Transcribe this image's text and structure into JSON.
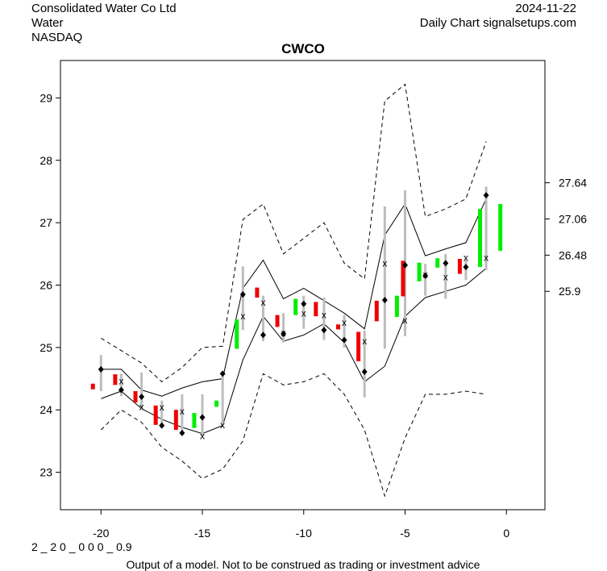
{
  "header": {
    "company": "Consolidated Water Co Ltd",
    "sector": "Water",
    "exchange": "NASDAQ",
    "date": "2024-11-22",
    "chart_kind": "Daily Chart signalsetups.com"
  },
  "footer": {
    "code": "2 _ 2 0 _ 0 0 0 _ 0.9",
    "disclaimer": "Output of a model. Not to be construed as trading or investment advice"
  },
  "colors": {
    "up": "#00ee00",
    "down": "#ee0000",
    "range": "#bdbdbd",
    "band": "#000000"
  },
  "chart_data": {
    "type": "candlestick",
    "title": "CWCO",
    "xlim": [
      -22,
      1.9
    ],
    "ylim": [
      22.4,
      29.6
    ],
    "x_ticks": [
      -20,
      -15,
      -10,
      -5,
      0
    ],
    "y_ticks": [
      23,
      24,
      25,
      26,
      27,
      28,
      29
    ],
    "right_ticks": [
      25.9,
      26.48,
      27.06,
      27.64
    ],
    "candles": [
      {
        "x": -20.4,
        "open": 24.42,
        "close": 24.33
      },
      {
        "x": -19.3,
        "open": 24.57,
        "close": 24.4
      },
      {
        "x": -18.3,
        "open": 24.3,
        "close": 24.12
      },
      {
        "x": -17.3,
        "open": 24.07,
        "close": 23.76
      },
      {
        "x": -16.3,
        "open": 24.0,
        "close": 23.68
      },
      {
        "x": -15.4,
        "open": 23.71,
        "close": 23.95
      },
      {
        "x": -14.3,
        "open": 24.05,
        "close": 24.15
      },
      {
        "x": -13.3,
        "open": 24.98,
        "close": 25.45
      },
      {
        "x": -12.3,
        "open": 25.96,
        "close": 25.8
      },
      {
        "x": -11.3,
        "open": 25.52,
        "close": 25.33
      },
      {
        "x": -10.4,
        "open": 25.52,
        "close": 25.78
      },
      {
        "x": -9.4,
        "open": 25.73,
        "close": 25.5
      },
      {
        "x": -8.3,
        "open": 25.37,
        "close": 25.29
      },
      {
        "x": -7.3,
        "open": 25.25,
        "close": 24.78
      },
      {
        "x": -6.4,
        "open": 25.75,
        "close": 25.42
      },
      {
        "x": -5.4,
        "open": 25.49,
        "close": 25.83
      },
      {
        "x": -5.1,
        "open": 26.39,
        "close": 25.82
      },
      {
        "x": -4.3,
        "open": 26.06,
        "close": 26.36
      },
      {
        "x": -3.4,
        "open": 26.28,
        "close": 26.43
      },
      {
        "x": -2.3,
        "open": 26.42,
        "close": 26.18
      },
      {
        "x": -1.3,
        "open": 26.29,
        "close": 27.22
      },
      {
        "x": -0.3,
        "open": 26.55,
        "close": 27.3
      }
    ],
    "ranges": [
      {
        "x": -20.0,
        "low": 24.3,
        "high": 24.88
      },
      {
        "x": -19.0,
        "low": 24.22,
        "high": 24.58
      },
      {
        "x": -18.0,
        "low": 24.0,
        "high": 24.6
      },
      {
        "x": -17.0,
        "low": 23.73,
        "high": 24.15
      },
      {
        "x": -16.0,
        "low": 23.6,
        "high": 24.25
      },
      {
        "x": -15.0,
        "low": 23.58,
        "high": 24.25
      },
      {
        "x": -14.0,
        "low": 23.76,
        "high": 24.6
      },
      {
        "x": -13.0,
        "low": 25.28,
        "high": 26.3
      },
      {
        "x": -12.0,
        "low": 25.1,
        "high": 25.83
      },
      {
        "x": -11.0,
        "low": 25.08,
        "high": 25.55
      },
      {
        "x": -10.0,
        "low": 25.3,
        "high": 25.83
      },
      {
        "x": -9.0,
        "low": 25.12,
        "high": 25.8
      },
      {
        "x": -8.0,
        "low": 25.0,
        "high": 25.52
      },
      {
        "x": -7.0,
        "low": 24.2,
        "high": 25.27
      },
      {
        "x": -6.0,
        "low": 24.98,
        "high": 27.26
      },
      {
        "x": -5.0,
        "low": 25.18,
        "high": 27.52
      },
      {
        "x": -4.0,
        "low": 25.83,
        "high": 26.34
      },
      {
        "x": -3.0,
        "low": 25.78,
        "high": 26.5
      },
      {
        "x": -2.0,
        "low": 26.08,
        "high": 26.4
      },
      {
        "x": -1.0,
        "low": 26.24,
        "high": 27.58
      }
    ],
    "x_markers": [
      {
        "x": -19.0,
        "y": 24.46
      },
      {
        "x": -18.0,
        "y": 24.05
      },
      {
        "x": -17.0,
        "y": 24.04
      },
      {
        "x": -16.0,
        "y": 23.98
      },
      {
        "x": -15.0,
        "y": 23.58
      },
      {
        "x": -14.0,
        "y": 23.76
      },
      {
        "x": -13.0,
        "y": 25.5
      },
      {
        "x": -12.0,
        "y": 25.72
      },
      {
        "x": -11.0,
        "y": 25.23
      },
      {
        "x": -10.0,
        "y": 25.55
      },
      {
        "x": -9.0,
        "y": 25.52
      },
      {
        "x": -8.0,
        "y": 25.4
      },
      {
        "x": -7.0,
        "y": 25.1
      },
      {
        "x": -6.0,
        "y": 26.35
      },
      {
        "x": -5.0,
        "y": 25.44
      },
      {
        "x": -4.0,
        "y": 26.17
      },
      {
        "x": -3.0,
        "y": 26.13
      },
      {
        "x": -2.0,
        "y": 26.44
      },
      {
        "x": -1.0,
        "y": 26.44
      }
    ],
    "diamond_markers": [
      {
        "x": -20.0,
        "y": 24.65
      },
      {
        "x": -19.0,
        "y": 24.32
      },
      {
        "x": -18.0,
        "y": 24.21
      },
      {
        "x": -17.0,
        "y": 23.75
      },
      {
        "x": -16.0,
        "y": 23.63
      },
      {
        "x": -15.0,
        "y": 23.88
      },
      {
        "x": -14.0,
        "y": 24.58
      },
      {
        "x": -13.0,
        "y": 25.85
      },
      {
        "x": -12.0,
        "y": 25.2
      },
      {
        "x": -11.0,
        "y": 25.22
      },
      {
        "x": -10.0,
        "y": 25.7
      },
      {
        "x": -9.0,
        "y": 25.28
      },
      {
        "x": -8.0,
        "y": 25.12
      },
      {
        "x": -7.0,
        "y": 24.61
      },
      {
        "x": -6.0,
        "y": 25.76
      },
      {
        "x": -5.0,
        "y": 26.32
      },
      {
        "x": -4.0,
        "y": 26.15
      },
      {
        "x": -3.0,
        "y": 26.35
      },
      {
        "x": -2.0,
        "y": 26.29
      },
      {
        "x": -1.0,
        "y": 27.44
      }
    ],
    "bands": {
      "x": [
        -20,
        -19,
        -18,
        -17,
        -16,
        -15,
        -14,
        -13,
        -12,
        -11,
        -10,
        -9,
        -8,
        -7,
        -6,
        -5,
        -4,
        -3,
        -2,
        -1
      ],
      "outer_upper": [
        25.15,
        24.95,
        24.75,
        24.45,
        24.68,
        25.0,
        25.02,
        27.05,
        27.3,
        26.5,
        26.75,
        27.0,
        26.35,
        26.1,
        28.95,
        29.22,
        27.1,
        27.22,
        27.38,
        28.3
      ],
      "inner_upper": [
        24.65,
        24.65,
        24.32,
        24.22,
        24.35,
        24.45,
        24.5,
        25.95,
        26.4,
        25.78,
        25.95,
        25.75,
        25.55,
        25.3,
        26.8,
        27.3,
        26.47,
        26.58,
        26.68,
        27.38
      ],
      "inner_lower": [
        24.18,
        24.3,
        24.02,
        23.85,
        23.72,
        23.62,
        23.75,
        24.8,
        25.5,
        25.1,
        25.2,
        25.38,
        25.08,
        24.45,
        24.7,
        25.5,
        25.8,
        25.9,
        26.0,
        26.27
      ],
      "outer_lower": [
        23.68,
        24.0,
        23.8,
        23.4,
        23.18,
        22.9,
        23.05,
        23.5,
        24.58,
        24.4,
        24.45,
        24.58,
        24.25,
        23.68,
        22.62,
        23.55,
        24.25,
        24.25,
        24.3,
        24.25
      ]
    }
  }
}
